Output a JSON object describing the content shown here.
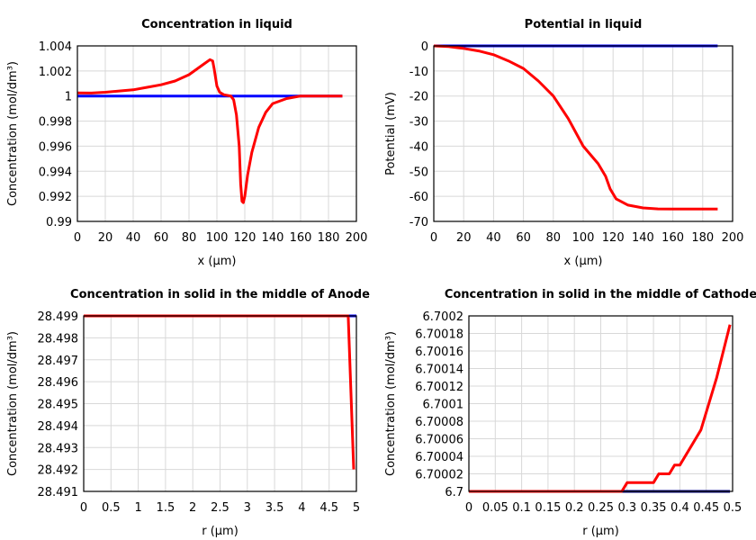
{
  "chart_data": [
    {
      "type": "line",
      "title": "Concentration in liquid",
      "xlabel": "x (µm)",
      "ylabel": "Concentration (mol/dm³)",
      "xlim": [
        0,
        200
      ],
      "ylim": [
        0.99,
        1.004
      ],
      "xticks": [
        0,
        20,
        40,
        60,
        80,
        100,
        120,
        140,
        160,
        180,
        200
      ],
      "xtick_labels": [
        "0",
        "20",
        "40",
        "60",
        "80",
        "100",
        "120",
        "140",
        "160",
        "180",
        "200"
      ],
      "yticks": [
        0.99,
        0.992,
        0.994,
        0.996,
        0.998,
        1,
        1.002,
        1.004
      ],
      "ytick_labels": [
        "0.99",
        "0.992",
        "0.994",
        "0.996",
        "0.998",
        "1",
        "1.002",
        "1.004"
      ],
      "grid": true,
      "series": [
        {
          "color": "#0000ff",
          "x": [
            0,
            190
          ],
          "y": [
            1,
            1
          ]
        },
        {
          "color": "#ff0000",
          "x": [
            0,
            10,
            20,
            30,
            40,
            50,
            60,
            70,
            80,
            90,
            95,
            97,
            98,
            100,
            102,
            105,
            110,
            112,
            114,
            116,
            117,
            118,
            119,
            120,
            122,
            125,
            130,
            135,
            140,
            150,
            160,
            190
          ],
          "y": [
            1.00025,
            1.00024,
            1.0003,
            1.0004,
            1.0005,
            1.0007,
            1.0009,
            1.0012,
            1.0017,
            1.0025,
            1.0029,
            1.0028,
            1.0022,
            1.0008,
            1.0003,
            1.0001,
            1.0,
            0.9997,
            0.9985,
            0.996,
            0.993,
            0.9916,
            0.9915,
            0.992,
            0.9937,
            0.9955,
            0.9975,
            0.9987,
            0.9994,
            0.9998,
            1.0,
            1.0
          ]
        }
      ]
    },
    {
      "type": "line",
      "title": "Potential in liquid",
      "xlabel": "x (µm)",
      "ylabel": "Potential (mV)",
      "xlim": [
        0,
        200
      ],
      "ylim": [
        -70,
        0
      ],
      "xticks": [
        0,
        20,
        40,
        60,
        80,
        100,
        120,
        140,
        160,
        180,
        200
      ],
      "xtick_labels": [
        "0",
        "20",
        "40",
        "60",
        "80",
        "100",
        "120",
        "140",
        "160",
        "180",
        "200"
      ],
      "yticks": [
        -70,
        -60,
        -50,
        -40,
        -30,
        -20,
        -10,
        0
      ],
      "ytick_labels": [
        "-70",
        "-60",
        "-50",
        "-40",
        "-30",
        "-20",
        "-10",
        "0"
      ],
      "grid": true,
      "series": [
        {
          "color": "#0000ff",
          "x": [
            0,
            190
          ],
          "y": [
            0,
            0
          ]
        },
        {
          "color": "#ff0000",
          "x": [
            0,
            10,
            20,
            30,
            40,
            50,
            60,
            70,
            80,
            90,
            100,
            110,
            115,
            118,
            122,
            130,
            140,
            150,
            160,
            190
          ],
          "y": [
            0,
            -0.3,
            -1,
            -2,
            -3.5,
            -6,
            -9,
            -14,
            -20,
            -29,
            -40,
            -47,
            -52,
            -57,
            -61,
            -63.5,
            -64.6,
            -65,
            -65.1,
            -65.1
          ]
        }
      ]
    },
    {
      "type": "line",
      "title": "Concentration in solid in the middle of Anode",
      "xlabel": "r (µm)",
      "ylabel": "Concentration (mol/dm³)",
      "xlim": [
        0,
        5
      ],
      "ylim": [
        28.491,
        28.499
      ],
      "xticks": [
        0,
        0.5,
        1,
        1.5,
        2,
        2.5,
        3,
        3.5,
        4,
        4.5,
        5
      ],
      "xtick_labels": [
        "0",
        "0.5",
        "1",
        "1.5",
        "2",
        "2.5",
        "3",
        "3.5",
        "4",
        "4.5",
        "5"
      ],
      "yticks": [
        28.491,
        28.492,
        28.493,
        28.494,
        28.495,
        28.496,
        28.497,
        28.498,
        28.499
      ],
      "ytick_labels": [
        "28.491",
        "28.492",
        "28.493",
        "28.494",
        "28.495",
        "28.496",
        "28.497",
        "28.498",
        "28.499"
      ],
      "grid": true,
      "series": [
        {
          "color": "#0000ff",
          "x": [
            0,
            5
          ],
          "y": [
            28.499,
            28.499
          ]
        },
        {
          "color": "#ff0000",
          "x": [
            0,
            4.85,
            4.95
          ],
          "y": [
            28.499,
            28.499,
            28.492
          ]
        }
      ]
    },
    {
      "type": "line",
      "title": "Concentration in solid in the middle of Cathode",
      "xlabel": "r (µm)",
      "ylabel": "Concentration (mol/dm³)",
      "xlim": [
        0,
        0.5
      ],
      "ylim": [
        6.7,
        6.7002
      ],
      "xticks": [
        0,
        0.05,
        0.1,
        0.15,
        0.2,
        0.25,
        0.3,
        0.35,
        0.4,
        0.45,
        0.5
      ],
      "xtick_labels": [
        "0",
        "0.05",
        "0.1",
        "0.15",
        "0.2",
        "0.25",
        "0.3",
        "0.35",
        "0.4",
        "0.45",
        "0.5"
      ],
      "yticks": [
        6.7,
        6.70002,
        6.70004,
        6.70006,
        6.70008,
        6.7001,
        6.70012,
        6.70014,
        6.70016,
        6.70018,
        6.7002
      ],
      "ytick_labels": [
        "6.7",
        "6.70002",
        "6.70004",
        "6.70006",
        "6.70008",
        "6.7001",
        "6.70012",
        "6.70014",
        "6.70016",
        "6.70018",
        "6.7002"
      ],
      "grid": true,
      "series": [
        {
          "color": "#000080",
          "x": [
            0,
            0.495
          ],
          "y": [
            6.7,
            6.7
          ]
        },
        {
          "color": "#ff0000",
          "x": [
            0,
            0.29,
            0.3,
            0.35,
            0.36,
            0.38,
            0.39,
            0.4,
            0.44,
            0.47,
            0.495
          ],
          "y": [
            6.7,
            6.7,
            6.70001,
            6.70001,
            6.70002,
            6.70002,
            6.70003,
            6.70003,
            6.70007,
            6.70013,
            6.70019
          ]
        }
      ]
    }
  ]
}
